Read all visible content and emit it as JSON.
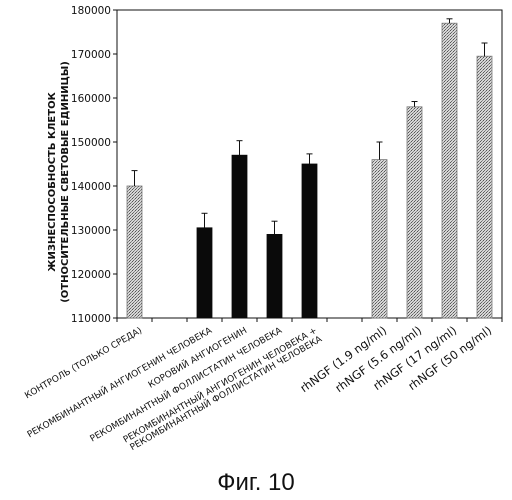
{
  "caption": "Фиг. 10",
  "chart_data": {
    "type": "bar",
    "ylabel_lines": [
      "ЖИЗНЕСПОСОБНОСТЬ КЛЕТОК",
      "(ОТНОСИТЕЛЬНЫЕ СВЕТОВЫЕ ЕДИНИЦЫ)"
    ],
    "ylim": [
      110000,
      180000
    ],
    "yticks": [
      110000,
      120000,
      130000,
      140000,
      150000,
      160000,
      170000,
      180000
    ],
    "ytick_labels": [
      "110000",
      "120000",
      "130000",
      "140000",
      "150000",
      "160000",
      "170000",
      "180000"
    ],
    "categories": [
      [
        "КОНТРОЛЬ (ТОЛЬКО СРЕДА)"
      ],
      [
        ""
      ],
      [
        "РЕКОМБИНАНТНЫЙ АНГИОГЕНИН ЧЕЛОВЕКА"
      ],
      [
        "КОРОВИЙ АНГИОГЕНИН"
      ],
      [
        "РЕКОМБИНАНТНЫЙ ФОЛЛИСТАТИН ЧЕЛОВЕКА"
      ],
      [
        "РЕКОМБИНАНТНЫЙ АНГИОГЕНИН ЧЕЛОВЕКА +",
        "РЕКОМБИНАНТНЫЙ ФОЛЛИСТАТИН ЧЕЛОВЕКА"
      ],
      [
        ""
      ],
      [
        "rhNGF (1.9 ng/ml)"
      ],
      [
        "rhNGF (5.6 ng/ml)"
      ],
      [
        "rhNGF (17 ng/ml)"
      ],
      [
        "rhNGF (50 ng/ml)"
      ]
    ],
    "values": [
      140000,
      null,
      130500,
      147000,
      129000,
      145000,
      null,
      146000,
      158000,
      177000,
      169500
    ],
    "errors": [
      3500,
      null,
      3300,
      3300,
      3000,
      2300,
      null,
      4000,
      1200,
      1000,
      3000
    ],
    "bar_styles": [
      "dotted",
      null,
      "solid",
      "solid",
      "solid",
      "solid",
      null,
      "dotted",
      "dotted",
      "dotted",
      "dotted"
    ],
    "colors": {
      "solid": "#0a0a0a",
      "dotted": "#bdbdbd",
      "axis": "#111111"
    },
    "grid": false,
    "legend": false
  }
}
